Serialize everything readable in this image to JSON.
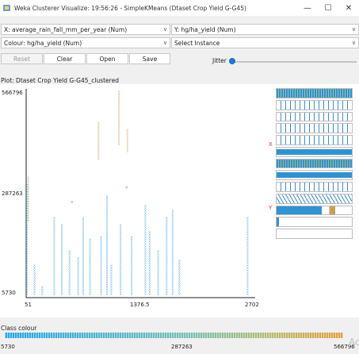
{
  "window": {
    "title": "Weka Clusterer Visualize: 19:56:26 - SimpleKMeans (Dtaset Crop Yield G-G45)",
    "minimize_glyph": "—",
    "maximize_glyph": "☐",
    "close_glyph": "✕"
  },
  "controls": {
    "x_axis": {
      "selected": "X: average_rain_fall_mm_per_year (Num)"
    },
    "y_axis": {
      "selected": "Y: hg/ha_yield (Num)"
    },
    "colour": {
      "selected": "Colour: hg/ha_yield (Num)"
    },
    "instance": {
      "selected": "Select Instance"
    },
    "dropdown_glyph": "∨",
    "buttons": {
      "reset": "Reset",
      "clear": "Clear",
      "open": "Open",
      "save": "Save"
    },
    "jitter": {
      "label": "Jitter",
      "value": 0
    }
  },
  "plot": {
    "title": "Plot: Dtaset Crop Yield G-G45_clustered",
    "x_label": "X",
    "y_label": "Y"
  },
  "chart_data": {
    "type": "scatter",
    "x_attribute": "average_rain_fall_mm_per_year",
    "y_attribute": "hg/ha_yield",
    "xlim": [
      51,
      2702
    ],
    "ylim": [
      5730,
      566796
    ],
    "x_ticks": [
      "51",
      "1376.5",
      "2702"
    ],
    "y_ticks": [
      "566796",
      "287263",
      "5730"
    ],
    "colour_scale": [
      "#2aa7e6",
      "#e0a040"
    ],
    "columns": [
      {
        "x": 60,
        "ymin": 5730,
        "ymax": 310000,
        "color": "#4aa0d8"
      },
      {
        "x": 75,
        "ymin": 210000,
        "ymax": 330000,
        "color": "#9aa86a"
      },
      {
        "x": 150,
        "ymin": 5730,
        "ymax": 90000,
        "color": "#3aa0e0"
      },
      {
        "x": 240,
        "ymin": 5730,
        "ymax": 30000,
        "color": "#3aa0e0"
      },
      {
        "x": 380,
        "ymin": 5730,
        "ymax": 220000,
        "color": "#3aa0e0"
      },
      {
        "x": 470,
        "ymin": 5730,
        "ymax": 200000,
        "color": "#3aa0e0"
      },
      {
        "x": 560,
        "ymin": 5730,
        "ymax": 130000,
        "color": "#3aa0e0"
      },
      {
        "x": 660,
        "ymin": 5730,
        "ymax": 110000,
        "color": "#3aa0e0"
      },
      {
        "x": 720,
        "ymin": 5730,
        "ymax": 220000,
        "color": "#3aa0e0"
      },
      {
        "x": 800,
        "ymin": 5730,
        "ymax": 160000,
        "color": "#3aa0e0"
      },
      {
        "x": 900,
        "ymin": 380000,
        "ymax": 480000,
        "color": "#c0a050"
      },
      {
        "x": 930,
        "ymin": 5730,
        "ymax": 170000,
        "color": "#3aa0e0"
      },
      {
        "x": 1000,
        "ymin": 5730,
        "ymax": 280000,
        "color": "#3aa0e0"
      },
      {
        "x": 1050,
        "ymin": 5730,
        "ymax": 90000,
        "color": "#3aa0e0"
      },
      {
        "x": 1140,
        "ymin": 420000,
        "ymax": 566796,
        "color": "#c89b50"
      },
      {
        "x": 1160,
        "ymin": 5730,
        "ymax": 200000,
        "color": "#3aa0e0"
      },
      {
        "x": 1240,
        "ymin": 400000,
        "ymax": 460000,
        "color": "#c89b50"
      },
      {
        "x": 1290,
        "ymin": 5730,
        "ymax": 170000,
        "color": "#3aa0e0"
      },
      {
        "x": 1450,
        "ymin": 5730,
        "ymax": 250000,
        "color": "#3aa0e0"
      },
      {
        "x": 1500,
        "ymin": 5730,
        "ymax": 180000,
        "color": "#3aa0e0"
      },
      {
        "x": 1600,
        "ymin": 5730,
        "ymax": 130000,
        "color": "#3aa0e0"
      },
      {
        "x": 1700,
        "ymin": 5730,
        "ymax": 220000,
        "color": "#3aa0e0"
      },
      {
        "x": 1770,
        "ymin": 5730,
        "ymax": 240000,
        "color": "#3aa0e0"
      },
      {
        "x": 1850,
        "ymin": 5730,
        "ymax": 100000,
        "color": "#3aa0e0"
      },
      {
        "x": 2650,
        "ymin": 5730,
        "ymax": 220000,
        "color": "#3aa0e0"
      }
    ],
    "points": [
      {
        "x": 590,
        "y": 260000,
        "color": "#3aa0e0"
      },
      {
        "x": 1230,
        "y": 300000,
        "color": "#3aa0e0"
      }
    ]
  },
  "matrix": {
    "rows": [
      {
        "bg": "#2d93d6",
        "fg": "#9fc0a0",
        "style": "dense"
      },
      {
        "bg": "#ffffff",
        "fg": "#3a8fd0",
        "style": "bars"
      },
      {
        "bg": "#ffffff",
        "fg": "#3a8fd0",
        "style": "bars"
      },
      {
        "bg": "#ffffff",
        "fg": "#3a8fd0",
        "style": "bars"
      },
      {
        "bg": "#ffffff",
        "fg": "#3a8fd0",
        "style": "bars"
      },
      {
        "bg": "#ffffff",
        "fg": "#2d93d6",
        "style": "half"
      },
      {
        "bg": "#2d93d6",
        "fg": "#a0b880",
        "style": "dense"
      },
      {
        "bg": "#ffffff",
        "fg": "#2d93d6",
        "style": "half"
      },
      {
        "bg": "#ffffff",
        "fg": "#3a8fd0",
        "style": "bars"
      },
      {
        "bg": "#ffffff",
        "fg": "#3a8fd0",
        "style": "wave"
      },
      {
        "bg": "#2d93d6",
        "fg": "#c8a050",
        "style": "mixed"
      },
      {
        "bg": "#ffffff",
        "fg": "#3a8fd0",
        "style": "sparse"
      },
      {
        "bg": "#ffffff",
        "fg": "#3a8fd0",
        "style": "empty"
      }
    ]
  },
  "class_colour": {
    "label": "Class colour",
    "min": "5730",
    "mid": "287263",
    "max": "566796"
  },
  "watermark": "Ac"
}
